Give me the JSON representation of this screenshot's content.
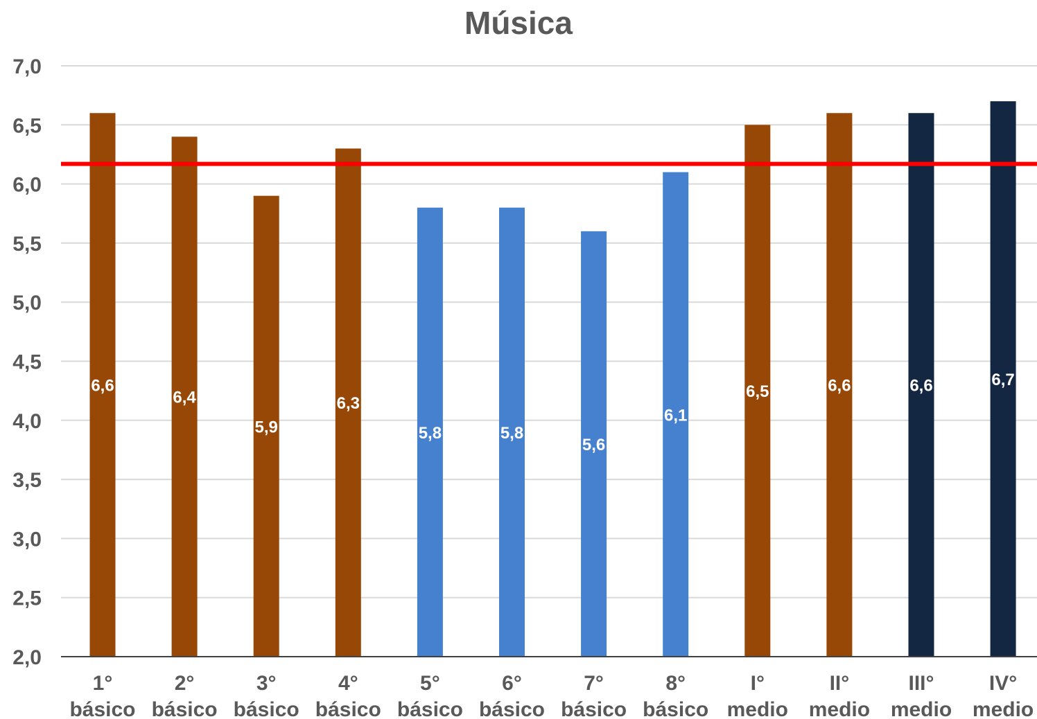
{
  "chart_data": {
    "type": "bar",
    "title": "Música",
    "xlabel": "",
    "ylabel": "",
    "ylim": [
      2.0,
      7.0
    ],
    "yticks": [
      "2,0",
      "2,5",
      "3,0",
      "3,5",
      "4,0",
      "4,5",
      "5,0",
      "5,5",
      "6,0",
      "6,5",
      "7,0"
    ],
    "grid": true,
    "categories": [
      [
        "1°",
        "básico"
      ],
      [
        "2°",
        "básico"
      ],
      [
        "3°",
        "básico"
      ],
      [
        "4°",
        "básico"
      ],
      [
        "5°",
        "básico"
      ],
      [
        "6°",
        "básico"
      ],
      [
        "7°",
        "básico"
      ],
      [
        "8°",
        "básico"
      ],
      [
        "I°",
        "medio"
      ],
      [
        "II°",
        "medio"
      ],
      [
        "III°",
        "medio"
      ],
      [
        "IV°",
        "medio"
      ]
    ],
    "values": [
      6.6,
      6.4,
      5.9,
      6.3,
      5.8,
      5.8,
      5.6,
      6.1,
      6.5,
      6.6,
      6.6,
      6.7
    ],
    "data_labels": [
      "6,6",
      "6,4",
      "5,9",
      "6,3",
      "5,8",
      "5,8",
      "5,6",
      "6,1",
      "6,5",
      "6,6",
      "6,6",
      "6,7"
    ],
    "bar_colors": [
      "#974706",
      "#974706",
      "#974706",
      "#974706",
      "#4681d0",
      "#4681d0",
      "#4681d0",
      "#4681d0",
      "#974706",
      "#974706",
      "#132642",
      "#132642"
    ],
    "reference_line": {
      "value": 6.17,
      "color": "#ff0000"
    },
    "colors": {
      "title": "#595959",
      "axis_text": "#595959",
      "gridline": "#d9d9d9",
      "axis_line": "#404040",
      "data_label": "#ffffff"
    }
  }
}
